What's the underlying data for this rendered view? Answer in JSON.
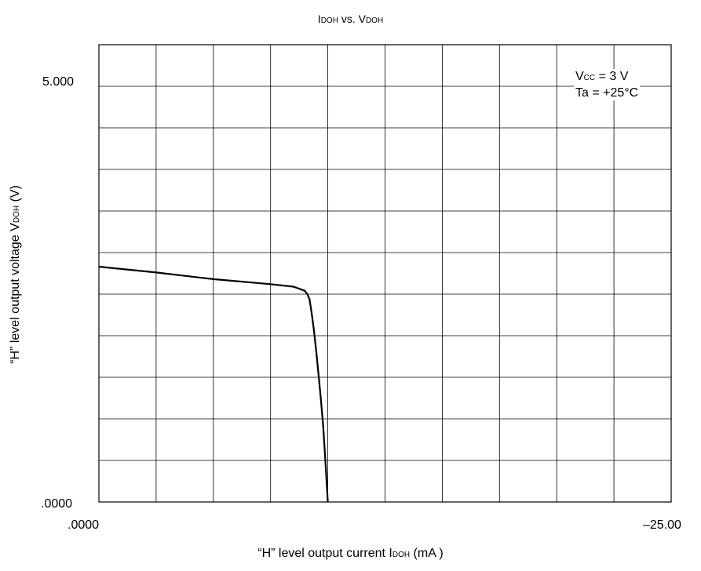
{
  "chart_data": {
    "type": "line",
    "title": {
      "main1": "I",
      "sub1": "DOH",
      "mid": " vs. V",
      "sub2": "DOH"
    },
    "xlabel": {
      "pre": "“H” level output current I",
      "sub": "DOH",
      "post": " (mA )"
    },
    "ylabel": {
      "pre": "“H” level output voltage V",
      "sub": "DOH",
      "post": " (V)"
    },
    "xlim": [
      0,
      -25
    ],
    "ylim": [
      0,
      5.5
    ],
    "x_tick_labels": [
      ".0000",
      "–25.00"
    ],
    "y_tick_labels": [
      ".0000",
      "5.000"
    ],
    "grid": true,
    "annotation": {
      "line1_pre": "V",
      "line1_sub": "CC",
      "line1_post": " = 3 V",
      "line2": "Ta = +25°C",
      "placement": "top-right"
    },
    "series": [
      {
        "x": [
          0,
          -2.5,
          -5,
          -7.5,
          -8.5,
          -9.0,
          -9.1,
          -9.2,
          -9.3,
          -9.4,
          -9.5,
          -9.6,
          -9.7,
          -9.8,
          -9.9,
          -10.0
        ],
        "y": [
          2.83,
          2.76,
          2.68,
          2.62,
          2.59,
          2.54,
          2.5,
          2.44,
          2.26,
          2.05,
          1.8,
          1.52,
          1.22,
          0.9,
          0.46,
          0.0
        ],
        "color": "#000000"
      }
    ]
  }
}
